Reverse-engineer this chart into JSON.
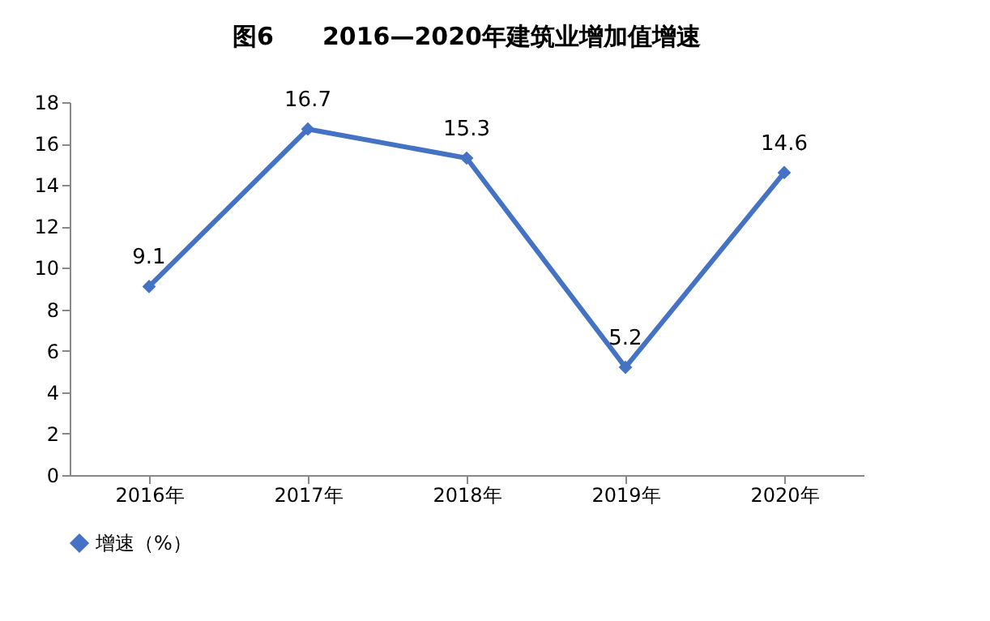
{
  "chart_data": {
    "type": "line",
    "title": "图6　　2016—2020年建筑业增加值增速",
    "categories": [
      "2016年",
      "2017年",
      "2018年",
      "2019年",
      "2020年"
    ],
    "series": [
      {
        "name": "增速（%）",
        "color": "#4472c4",
        "values": [
          9.1,
          16.7,
          15.3,
          5.2,
          14.6
        ]
      }
    ],
    "ylim": [
      0,
      18
    ],
    "yticks": [
      0,
      2,
      4,
      6,
      8,
      10,
      12,
      14,
      16,
      18
    ],
    "grid": false,
    "legend": "bottom",
    "marker": "diamond",
    "line_style": "solid",
    "data_labels": true
  }
}
